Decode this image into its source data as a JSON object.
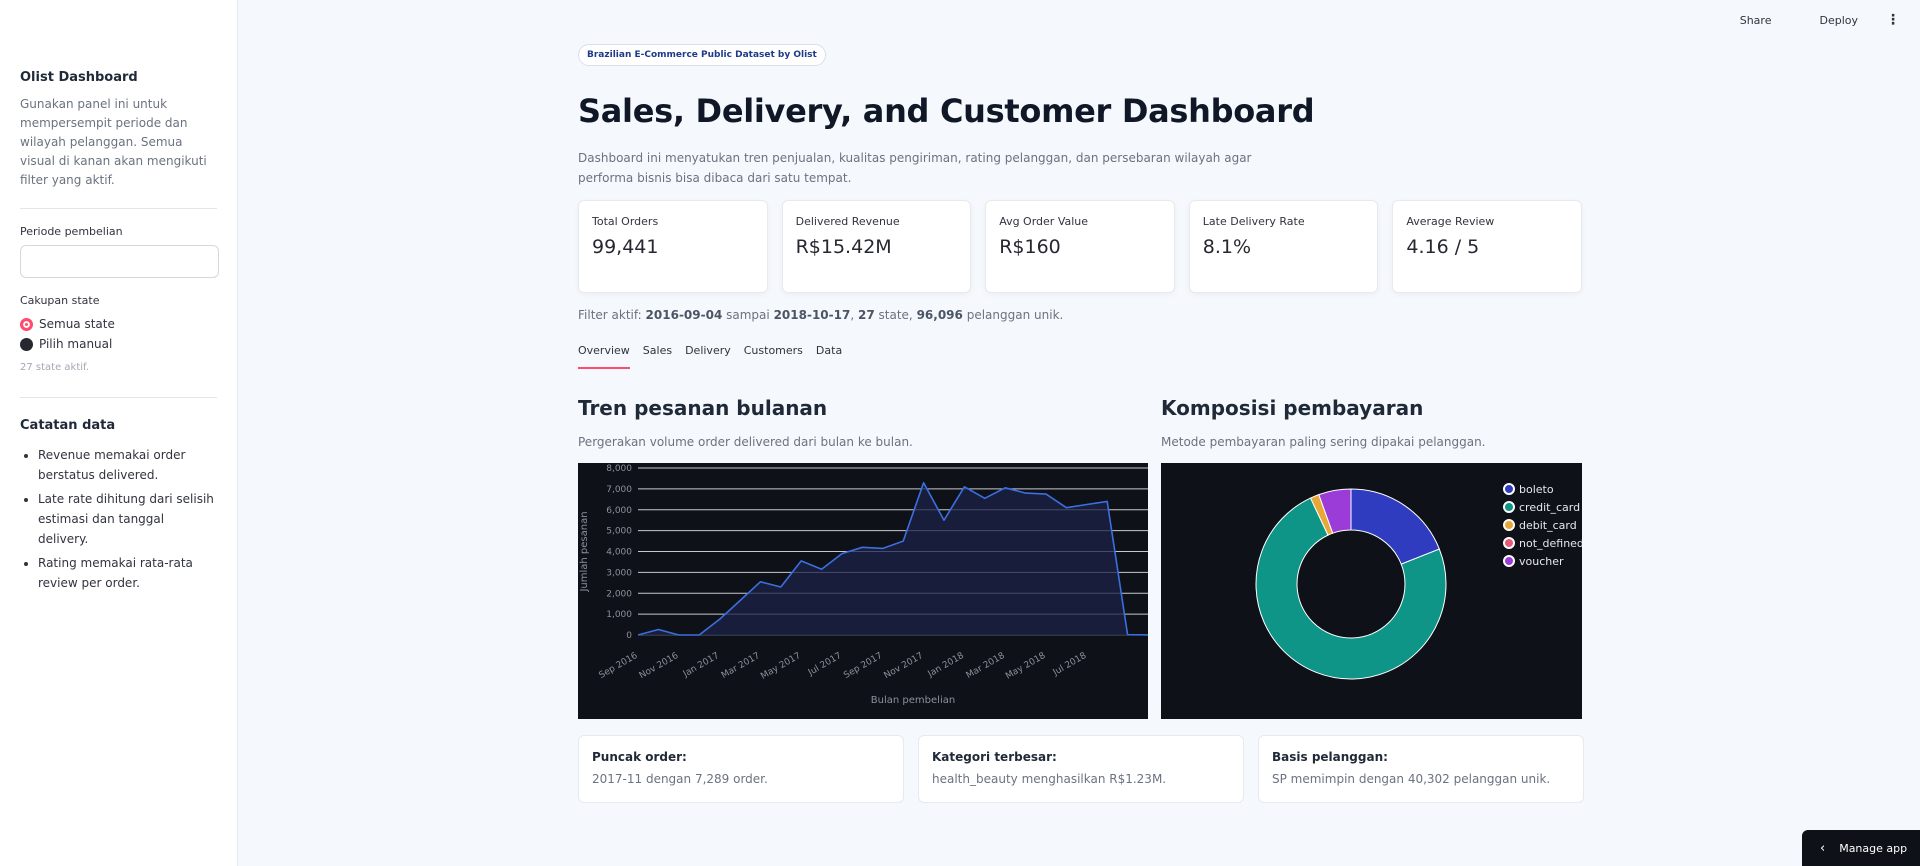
{
  "topbar": {
    "share": "Share",
    "deploy": "Deploy",
    "menu_icon": "more-vert-icon"
  },
  "sidebar": {
    "title": "Olist Dashboard",
    "desc": "Gunakan panel ini untuk mempersempit periode dan wilayah pelanggan. Semua visual di kanan akan mengikuti filter yang aktif.",
    "period_label": "Periode pembelian",
    "period_value": "",
    "state_label": "Cakupan state",
    "radio_all": "Semua state",
    "radio_manual": "Pilih manual",
    "state_note": "27 state aktif.",
    "notes_title": "Catatan data",
    "notes": [
      "Revenue memakai order berstatus delivered.",
      "Late rate dihitung dari selisih estimasi dan tanggal delivery.",
      "Rating memakai rata-rata review per order."
    ]
  },
  "header": {
    "badge": "Brazilian E-Commerce Public Dataset by Olist",
    "title": "Sales, Delivery, and Customer Dashboard",
    "desc": "Dashboard ini menyatukan tren penjualan, kualitas pengiriman, rating pelanggan, dan persebaran wilayah agar performa bisnis bisa dibaca dari satu tempat."
  },
  "kpis": [
    {
      "label": "Total Orders",
      "value": "99,441"
    },
    {
      "label": "Delivered Revenue",
      "value": "R$15.42M"
    },
    {
      "label": "Avg Order Value",
      "value": "R$160"
    },
    {
      "label": "Late Delivery Rate",
      "value": "8.1%"
    },
    {
      "label": "Average Review",
      "value": "4.16 / 5"
    }
  ],
  "filter": {
    "prefix": "Filter aktif:",
    "start": "2016-09-04",
    "mid1": "sampai",
    "end": "2018-10-17",
    "sep1": ",",
    "states": "27",
    "mid2": "state,",
    "customers": "96,096",
    "suffix": "pelanggan unik."
  },
  "tabs": [
    "Overview",
    "Sales",
    "Delivery",
    "Customers",
    "Data"
  ],
  "line_section": {
    "title": "Tren pesanan bulanan",
    "desc": "Pergerakan volume order delivered dari bulan ke bulan."
  },
  "pie_section": {
    "title": "Komposisi pembayaran",
    "desc": "Metode pembayaran paling sering dipakai pelanggan."
  },
  "chart_data": [
    {
      "type": "line",
      "xlabel": "Bulan pembelian",
      "ylabel": "Jumlah pesanan",
      "ylim": [
        0,
        8000
      ],
      "yticks": [
        0,
        1000,
        2000,
        3000,
        4000,
        5000,
        6000,
        7000,
        8000
      ],
      "ytick_labels": [
        "0",
        "1,000",
        "2,000",
        "3,000",
        "4,000",
        "5,000",
        "6,000",
        "7,000",
        "8,000"
      ],
      "xtick_labels": [
        "Sep 2016",
        "Nov 2016",
        "Jan 2017",
        "Mar 2017",
        "May 2017",
        "Jul 2017",
        "Sep 2017",
        "Nov 2017",
        "Jan 2018",
        "Mar 2018",
        "May 2018",
        "Jul 2018"
      ],
      "x": [
        "2016-09",
        "2016-10",
        "2016-11",
        "2016-12",
        "2017-01",
        "2017-02",
        "2017-03",
        "2017-04",
        "2017-05",
        "2017-06",
        "2017-07",
        "2017-08",
        "2017-09",
        "2017-10",
        "2017-11",
        "2017-12",
        "2018-01",
        "2018-02",
        "2018-03",
        "2018-04",
        "2018-05",
        "2018-06",
        "2018-07",
        "2018-08",
        "2018-09",
        "2018-10"
      ],
      "values": [
        1,
        265,
        0,
        1,
        750,
        1650,
        2550,
        2300,
        3550,
        3150,
        3900,
        4200,
        4150,
        4500,
        7289,
        5500,
        7100,
        6550,
        7050,
        6800,
        6750,
        6100,
        6250,
        6400,
        16,
        4
      ],
      "grid": true,
      "colors": {
        "line": "#3b6fe0",
        "fill": "#1b2147",
        "bg": "#0e1117"
      }
    },
    {
      "type": "pie",
      "hole": true,
      "categories": [
        "boleto",
        "credit_card",
        "debit_card",
        "not_defined",
        "voucher"
      ],
      "values": [
        19.0,
        74.0,
        1.5,
        0.0,
        5.5
      ],
      "colors": [
        "#2f3cbf",
        "#0f9488",
        "#e8a838",
        "#e85a7a",
        "#9b3cd8"
      ],
      "legend": "top-right"
    }
  ],
  "insights": [
    {
      "title": "Puncak order:",
      "text": "2017-11 dengan 7,289 order."
    },
    {
      "title": "Kategori terbesar:",
      "text": "health_beauty menghasilkan R$1.23M."
    },
    {
      "title": "Basis pelanggan:",
      "text": "SP memimpin dengan 40,302 pelanggan unik."
    }
  ],
  "manage": {
    "label": "Manage app"
  }
}
